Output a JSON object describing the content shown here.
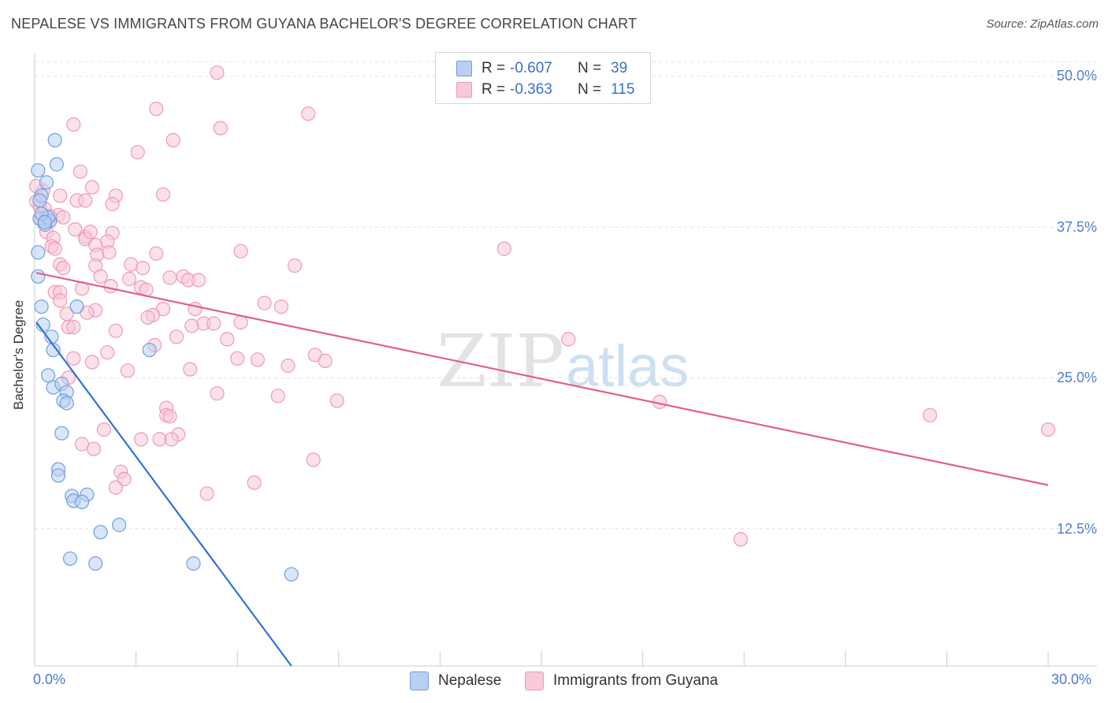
{
  "chart_data": {
    "type": "scatter",
    "title": "NEPALESE VS IMMIGRANTS FROM GUYANA BACHELOR'S DEGREE CORRELATION CHART",
    "source": "Source: ZipAtlas.com",
    "xlabel": "",
    "ylabel": "Bachelor's Degree",
    "xlim": [
      0,
      30
    ],
    "ylim": [
      0,
      50
    ],
    "x_tick_labels": [
      "0.0%",
      "30.0%"
    ],
    "y_tick_labels": [
      "50.0%",
      "37.5%",
      "25.0%",
      "12.5%"
    ],
    "y_tick_values": [
      50,
      37.5,
      25,
      12.5
    ],
    "watermark": {
      "zip": "ZIP",
      "atlas": "atlas"
    },
    "legend_stats": {
      "r_label": "R =",
      "n_label": "N =",
      "rows": [
        {
          "r": "-0.607",
          "n": "39"
        },
        {
          "r": "-0.363",
          "n": "115"
        }
      ]
    },
    "series": [
      {
        "name": "Nepalese",
        "color": "#6f9fe0",
        "fill": "#b9d0f2",
        "line_color": "#2f73d6",
        "trend": {
          "x0": 0.05,
          "y0": 28.5,
          "x1": 7.6,
          "y1": 0
        },
        "points": [
          [
            0.1,
            41.1
          ],
          [
            0.6,
            43.6
          ],
          [
            0.65,
            41.6
          ],
          [
            0.35,
            40.1
          ],
          [
            0.2,
            39.0
          ],
          [
            0.15,
            37.1
          ],
          [
            0.45,
            36.9
          ],
          [
            0.3,
            36.6
          ],
          [
            0.1,
            34.3
          ],
          [
            0.1,
            32.3
          ],
          [
            0.2,
            29.8
          ],
          [
            0.25,
            28.3
          ],
          [
            0.5,
            27.3
          ],
          [
            0.55,
            26.2
          ],
          [
            1.25,
            29.8
          ],
          [
            3.4,
            26.2
          ],
          [
            0.4,
            24.1
          ],
          [
            0.55,
            23.1
          ],
          [
            0.8,
            23.4
          ],
          [
            0.95,
            22.7
          ],
          [
            0.85,
            22.0
          ],
          [
            0.95,
            21.8
          ],
          [
            0.8,
            19.3
          ],
          [
            0.7,
            16.3
          ],
          [
            0.7,
            15.8
          ],
          [
            1.1,
            14.1
          ],
          [
            1.55,
            14.2
          ],
          [
            1.15,
            13.7
          ],
          [
            1.4,
            13.6
          ],
          [
            2.5,
            11.7
          ],
          [
            1.95,
            11.1
          ],
          [
            1.05,
            8.9
          ],
          [
            1.8,
            8.5
          ],
          [
            4.7,
            8.5
          ],
          [
            7.6,
            7.6
          ],
          [
            0.4,
            37.2
          ],
          [
            0.2,
            37.5
          ],
          [
            0.3,
            36.8
          ],
          [
            0.15,
            38.6
          ]
        ]
      },
      {
        "name": "Immigrants from Guyana",
        "color": "#ee9ab5",
        "fill": "#f8c9d8",
        "line_color": "#e0608a",
        "trend": {
          "x0": 0.05,
          "y0": 32.6,
          "x1": 30,
          "y1": 15.0
        },
        "points": [
          [
            5.4,
            49.2
          ],
          [
            3.6,
            46.2
          ],
          [
            8.1,
            45.8
          ],
          [
            1.15,
            44.9
          ],
          [
            5.5,
            44.6
          ],
          [
            4.1,
            43.6
          ],
          [
            3.05,
            42.6
          ],
          [
            1.35,
            41.0
          ],
          [
            1.7,
            39.7
          ],
          [
            0.25,
            39.4
          ],
          [
            2.4,
            39.0
          ],
          [
            3.8,
            39.1
          ],
          [
            0.75,
            39.0
          ],
          [
            1.25,
            38.6
          ],
          [
            1.5,
            38.6
          ],
          [
            0.05,
            38.5
          ],
          [
            2.3,
            38.3
          ],
          [
            0.15,
            38.1
          ],
          [
            0.3,
            37.9
          ],
          [
            0.7,
            37.4
          ],
          [
            0.2,
            37.1
          ],
          [
            0.4,
            36.9
          ],
          [
            1.5,
            35.6
          ],
          [
            2.3,
            35.9
          ],
          [
            0.35,
            36.0
          ],
          [
            0.55,
            35.5
          ],
          [
            1.5,
            35.4
          ],
          [
            2.15,
            35.2
          ],
          [
            0.5,
            34.8
          ],
          [
            1.8,
            34.9
          ],
          [
            0.6,
            34.6
          ],
          [
            2.2,
            34.3
          ],
          [
            1.85,
            34.1
          ],
          [
            3.6,
            34.2
          ],
          [
            6.1,
            34.4
          ],
          [
            13.9,
            34.6
          ],
          [
            1.8,
            33.2
          ],
          [
            0.75,
            33.3
          ],
          [
            0.85,
            33.0
          ],
          [
            2.85,
            33.3
          ],
          [
            7.7,
            33.2
          ],
          [
            1.95,
            32.3
          ],
          [
            2.8,
            32.1
          ],
          [
            4.0,
            32.2
          ],
          [
            4.4,
            32.3
          ],
          [
            4.55,
            32.0
          ],
          [
            4.85,
            32.0
          ],
          [
            0.6,
            31.0
          ],
          [
            0.75,
            31.0
          ],
          [
            1.4,
            31.3
          ],
          [
            2.25,
            31.5
          ],
          [
            3.15,
            31.4
          ],
          [
            3.3,
            31.2
          ],
          [
            0.75,
            30.3
          ],
          [
            6.8,
            30.1
          ],
          [
            7.3,
            29.8
          ],
          [
            1.8,
            29.5
          ],
          [
            3.8,
            29.6
          ],
          [
            4.75,
            29.6
          ],
          [
            0.95,
            29.2
          ],
          [
            1.55,
            29.3
          ],
          [
            3.5,
            29.1
          ],
          [
            3.35,
            28.9
          ],
          [
            5.0,
            28.4
          ],
          [
            5.3,
            28.4
          ],
          [
            4.65,
            28.2
          ],
          [
            6.1,
            28.5
          ],
          [
            1.0,
            28.1
          ],
          [
            1.15,
            28.1
          ],
          [
            2.4,
            27.8
          ],
          [
            4.2,
            27.3
          ],
          [
            5.7,
            27.1
          ],
          [
            15.8,
            27.1
          ],
          [
            3.55,
            26.6
          ],
          [
            2.15,
            26.0
          ],
          [
            1.15,
            25.5
          ],
          [
            1.7,
            25.2
          ],
          [
            6.0,
            25.5
          ],
          [
            6.6,
            25.4
          ],
          [
            8.3,
            25.8
          ],
          [
            8.6,
            25.3
          ],
          [
            7.5,
            24.9
          ],
          [
            2.75,
            24.5
          ],
          [
            4.6,
            24.6
          ],
          [
            1.0,
            23.9
          ],
          [
            5.4,
            22.6
          ],
          [
            7.2,
            22.4
          ],
          [
            8.95,
            22.0
          ],
          [
            18.5,
            21.9
          ],
          [
            3.9,
            21.4
          ],
          [
            3.9,
            20.8
          ],
          [
            4.0,
            20.7
          ],
          [
            26.5,
            20.8
          ],
          [
            2.05,
            19.6
          ],
          [
            4.25,
            19.2
          ],
          [
            3.15,
            18.8
          ],
          [
            3.7,
            18.8
          ],
          [
            4.05,
            18.8
          ],
          [
            1.4,
            18.4
          ],
          [
            1.75,
            18.0
          ],
          [
            30,
            19.6
          ],
          [
            8.25,
            17.1
          ],
          [
            2.55,
            16.1
          ],
          [
            2.65,
            15.5
          ],
          [
            6.5,
            15.2
          ],
          [
            2.4,
            14.8
          ],
          [
            5.1,
            14.3
          ],
          [
            20.9,
            10.5
          ],
          [
            0.05,
            39.8
          ],
          [
            0.35,
            37.3
          ],
          [
            1.65,
            36.0
          ],
          [
            0.85,
            37.2
          ],
          [
            0.45,
            37.3
          ],
          [
            1.2,
            36.2
          ],
          [
            3.2,
            33.0
          ]
        ]
      }
    ]
  },
  "legend": {
    "bottom": [
      "Nepalese",
      "Immigrants from Guyana"
    ]
  }
}
